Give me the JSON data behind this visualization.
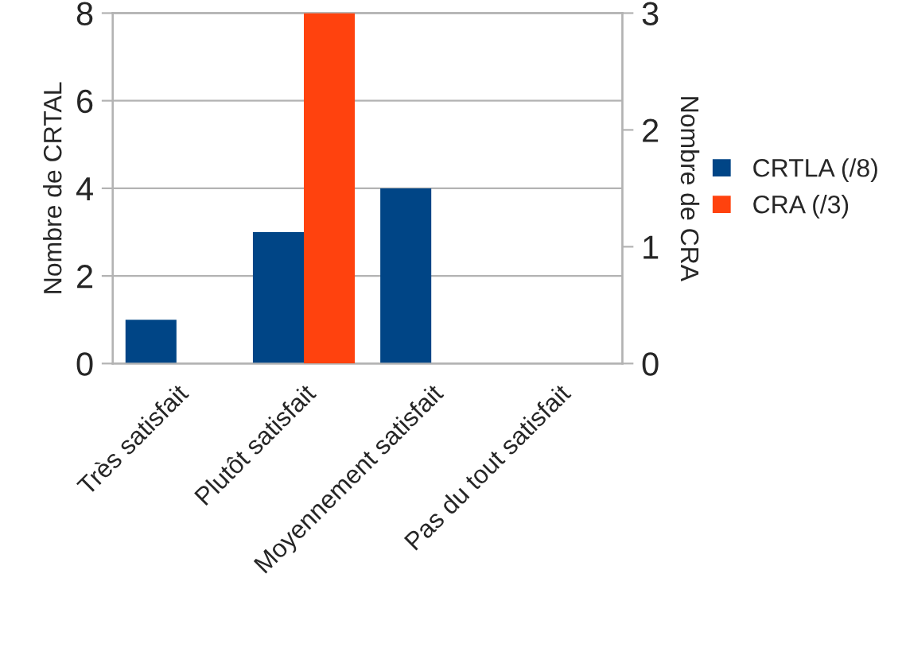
{
  "chart_data": {
    "type": "bar",
    "categories": [
      "Très satisfait",
      "Plutôt satisfait",
      "Moyennement satisfait",
      "Pas du tout satisfait"
    ],
    "ylabel": "Nombre de CRTAL",
    "y2label": "Nombre de CRA",
    "series": [
      {
        "name": "CRTLA (/8)",
        "color": "#004586",
        "values": [
          1,
          3,
          4,
          0
        ]
      },
      {
        "name": "CRA (/3)",
        "color": "#ff420e",
        "values": [
          0,
          3,
          0,
          0
        ],
        "axis": "y2"
      }
    ],
    "ylim": [
      0,
      8
    ],
    "yticks": [
      0,
      2,
      4,
      6,
      8
    ],
    "y2lim": [
      0,
      3
    ],
    "y2ticks": [
      0,
      1,
      2,
      3
    ],
    "grid": "y",
    "legend": "right"
  }
}
